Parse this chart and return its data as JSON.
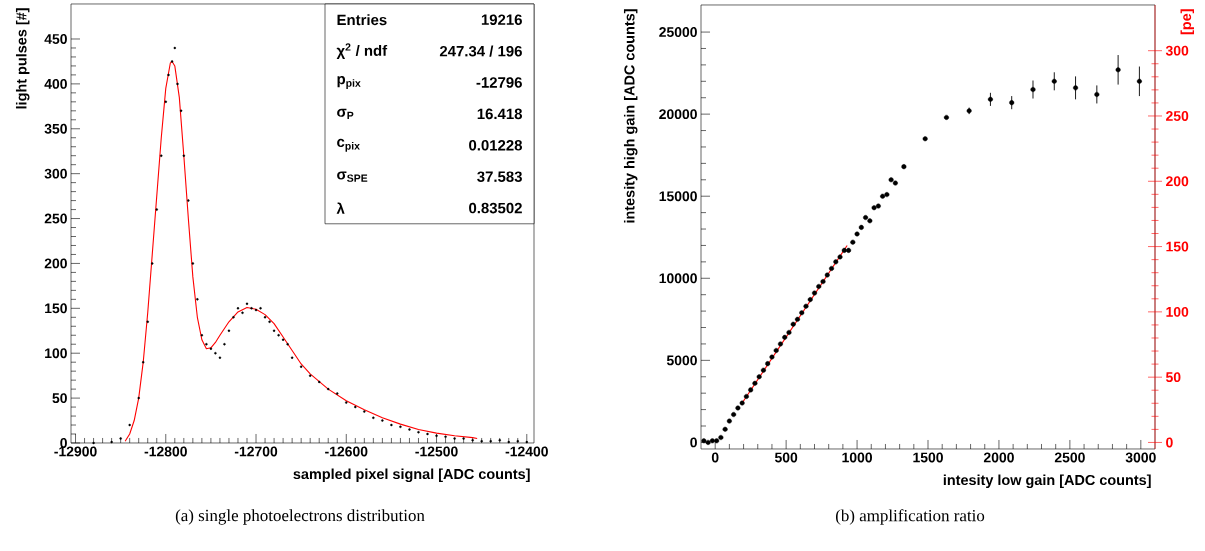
{
  "chart_data": [
    {
      "type": "scatter",
      "title": "(a) single photoelectrons distribution",
      "xlabel": "sampled pixel signal [ADC counts]",
      "ylabel": "light pulses [#]",
      "xlim": [
        -12905,
        -12392
      ],
      "ylim": [
        0,
        489
      ],
      "xticks": [
        -12900,
        -12800,
        -12700,
        -12600,
        -12500,
        -12400
      ],
      "yticks": [
        0,
        50,
        100,
        150,
        200,
        250,
        300,
        350,
        400,
        450
      ],
      "marker": "circle",
      "series": [
        {
          "color": "#000000",
          "x": [
            -12880,
            -12860,
            -12850,
            -12840,
            -12830,
            -12825,
            -12820,
            -12815,
            -12810,
            -12805,
            -12800,
            -12797,
            -12793,
            -12790,
            -12787,
            -12783,
            -12780,
            -12775,
            -12770,
            -12765,
            -12760,
            -12755,
            -12750,
            -12745,
            -12740,
            -12735,
            -12730,
            -12725,
            -12720,
            -12715,
            -12710,
            -12705,
            -12700,
            -12695,
            -12690,
            -12685,
            -12680,
            -12675,
            -12670,
            -12665,
            -12660,
            -12650,
            -12640,
            -12630,
            -12620,
            -12610,
            -12600,
            -12590,
            -12580,
            -12570,
            -12560,
            -12550,
            -12540,
            -12530,
            -12520,
            -12510,
            -12500,
            -12490,
            -12480,
            -12470,
            -12460,
            -12450,
            -12440,
            -12430,
            -12420,
            -12410,
            -12400
          ],
          "values": [
            0,
            1,
            5,
            20,
            50,
            90,
            135,
            200,
            260,
            320,
            380,
            410,
            425,
            440,
            400,
            370,
            320,
            270,
            200,
            160,
            120,
            110,
            105,
            100,
            95,
            110,
            125,
            140,
            150,
            145,
            155,
            150,
            148,
            150,
            140,
            135,
            125,
            120,
            115,
            110,
            95,
            85,
            75,
            68,
            60,
            55,
            45,
            40,
            35,
            28,
            25,
            20,
            18,
            15,
            12,
            10,
            8,
            7,
            5,
            5,
            3,
            2,
            2,
            3,
            1,
            2,
            1
          ]
        },
        {
          "type": "line",
          "marker": "none",
          "color": "#ff0000",
          "x": [
            -12845,
            -12840,
            -12835,
            -12830,
            -12825,
            -12820,
            -12815,
            -12810,
            -12805,
            -12800,
            -12795,
            -12793,
            -12790,
            -12785,
            -12780,
            -12775,
            -12770,
            -12765,
            -12760,
            -12755,
            -12750,
            -12745,
            -12740,
            -12730,
            -12720,
            -12710,
            -12700,
            -12690,
            -12680,
            -12670,
            -12660,
            -12650,
            -12640,
            -12620,
            -12600,
            -12580,
            -12560,
            -12540,
            -12520,
            -12500,
            -12480,
            -12460,
            -12455
          ],
          "values": [
            2,
            10,
            25,
            50,
            90,
            145,
            210,
            275,
            340,
            395,
            423,
            425,
            420,
            385,
            320,
            250,
            185,
            140,
            115,
            105,
            106,
            112,
            120,
            135,
            146,
            151,
            149,
            143,
            133,
            118,
            103,
            88,
            77,
            60,
            47,
            37,
            28,
            21,
            15,
            11,
            8,
            6,
            5
          ]
        }
      ],
      "annotations": [
        "Entries",
        "19216",
        "χ$^{2}$ / ndf",
        "247.34 / 196",
        "p$_{pix}$",
        "-12796",
        "σ$_{P}$",
        "16.418",
        "c$_{pix}$",
        "0.01228",
        "σ$_{SPE}$",
        "37.583",
        "λ",
        "0.83502"
      ]
    },
    {
      "type": "scatter",
      "title": "(b) amplification ratio",
      "xlabel": "intesity low gain [ADC counts]",
      "ylabel": "intesity high gain [ADC counts]",
      "y2label": "[pe]",
      "xlim": [
        -100,
        3100
      ],
      "ylim": [
        -400,
        26650
      ],
      "y2lim": [
        -5,
        335
      ],
      "xticks": [
        0,
        500,
        1000,
        1500,
        2000,
        2500,
        3000
      ],
      "yticks": [
        0,
        5000,
        10000,
        15000,
        20000,
        25000
      ],
      "y2ticks": [
        0,
        50,
        100,
        150,
        200,
        250,
        300
      ],
      "marker": "circle",
      "series": [
        {
          "color": "#000000",
          "x": [
            -80,
            -50,
            -20,
            10,
            40,
            70,
            100,
            130,
            160,
            190,
            220,
            250,
            280,
            310,
            340,
            370,
            400,
            430,
            460,
            490,
            520,
            550,
            580,
            610,
            640,
            670,
            700,
            730,
            760,
            790,
            820,
            850,
            880,
            910,
            940,
            970,
            1000,
            1030,
            1060,
            1090,
            1120,
            1150,
            1180,
            1210,
            1240,
            1270,
            1330,
            1480,
            1630,
            1790,
            1940,
            2090,
            2240,
            2390,
            2540,
            2690,
            2840,
            2990
          ],
          "values": [
            100,
            0,
            100,
            100,
            300,
            800,
            1300,
            1700,
            2100,
            2400,
            2800,
            3200,
            3600,
            4000,
            4400,
            4800,
            5200,
            5600,
            6000,
            6400,
            6700,
            7200,
            7500,
            7900,
            8300,
            8700,
            9100,
            9500,
            9800,
            10200,
            10600,
            11000,
            11300,
            11700,
            11700,
            12200,
            12700,
            13100,
            13700,
            13500,
            14300,
            14400,
            15000,
            15100,
            16000,
            15800,
            16800,
            18500,
            19800,
            20200,
            20900,
            20700,
            21500,
            22000,
            21600,
            21200,
            22700,
            22000
          ],
          "errors": [
            null,
            null,
            null,
            null,
            null,
            null,
            null,
            null,
            null,
            null,
            null,
            null,
            null,
            null,
            null,
            null,
            null,
            null,
            null,
            null,
            null,
            null,
            null,
            null,
            null,
            null,
            null,
            null,
            null,
            null,
            null,
            null,
            null,
            null,
            null,
            null,
            null,
            null,
            null,
            null,
            null,
            null,
            null,
            null,
            null,
            null,
            null,
            null,
            null,
            200,
            400,
            400,
            550,
            550,
            700,
            550,
            900,
            900
          ]
        },
        {
          "type": "line",
          "marker": "none",
          "color": "#ff0000",
          "x": [
            190,
            930
          ],
          "values": [
            2400,
            12000
          ]
        }
      ]
    }
  ]
}
